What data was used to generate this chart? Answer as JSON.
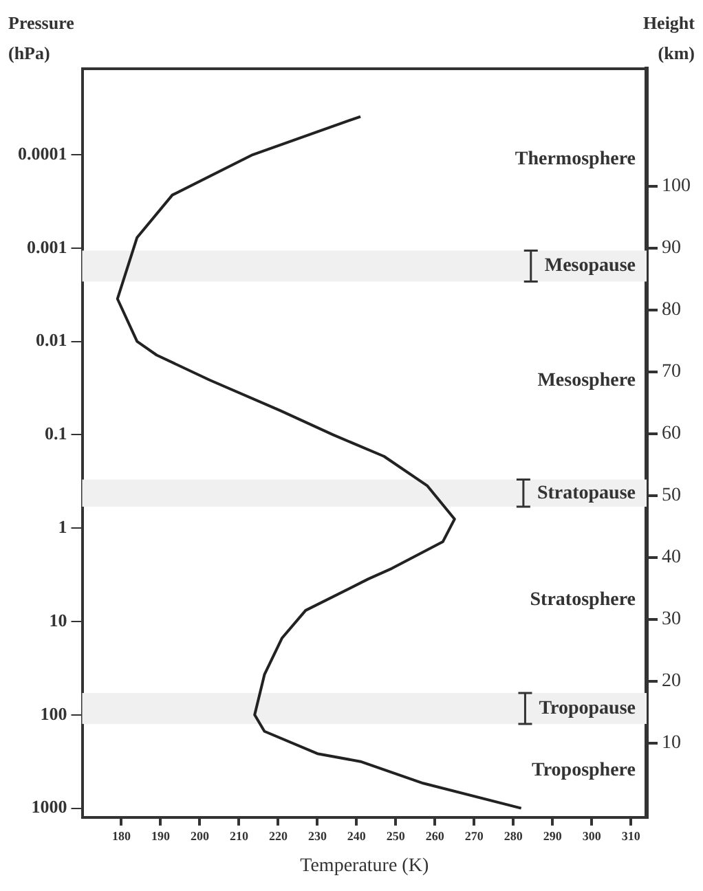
{
  "chart_data": {
    "type": "line",
    "xlabel": "Temperature (K)",
    "ylabel": "Pressure (hPa)",
    "y2label": "Height (km)",
    "series": [
      {
        "color": "#222222",
        "x": [
          241,
          213.5,
          193,
          184,
          179,
          184,
          189,
          202.6,
          220.5,
          234,
          247,
          258,
          265,
          262,
          249,
          243,
          227,
          221,
          216.5,
          214,
          216.5,
          230,
          241,
          257,
          282
        ],
        "values": [
          3.9e-05,
          0.0001,
          0.00027,
          0.00077,
          0.0035,
          0.01,
          0.014,
          0.026,
          0.055,
          0.1,
          0.17,
          0.35,
          0.8,
          1.4,
          2.7,
          3.5,
          7.6,
          15,
          37,
          100,
          150,
          260,
          316,
          540,
          1000
        ]
      }
    ],
    "xlim": [
      170,
      314
    ],
    "xticks": [
      180,
      190,
      200,
      210,
      220,
      230,
      240,
      250,
      260,
      270,
      280,
      290,
      300,
      310
    ],
    "ylim": [
      1250,
      1.2e-05
    ],
    "yticks": [
      0.0001,
      0.001,
      0.01,
      0.1,
      1,
      10,
      100,
      1000
    ],
    "log": "y",
    "y2lim": [
      -2,
      119
    ],
    "y2ticks": [
      10,
      20,
      30,
      40,
      50,
      60,
      70,
      80,
      90,
      100
    ],
    "bands": [
      {
        "axis": "y2",
        "from": 84.6,
        "to": 89.6,
        "label": "Mesopause"
      },
      {
        "axis": "y2",
        "from": 48.2,
        "to": 52.6,
        "label": "Stratopause"
      },
      {
        "axis": "y2",
        "from": 13.1,
        "to": 18.1,
        "label": "Tropopause"
      }
    ],
    "annotations": [
      "Thermosphere",
      "Mesosphere",
      "Stratosphere",
      "Troposphere"
    ],
    "marker": "none",
    "grid": false,
    "legend": false
  }
}
